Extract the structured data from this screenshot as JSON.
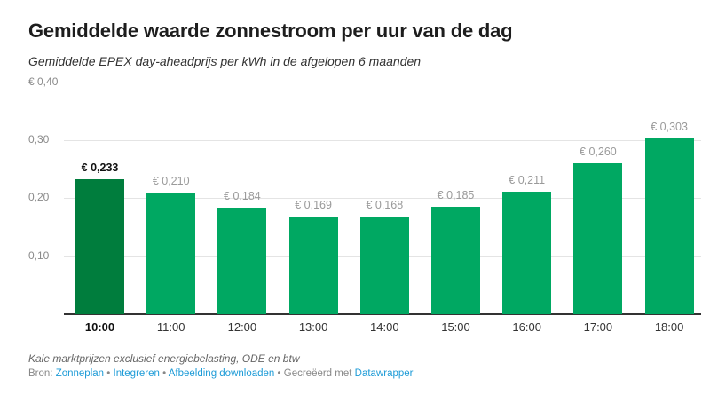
{
  "header": {
    "title": "Gemiddelde waarde zonnestroom per uur van de dag",
    "subtitle": "Gemiddelde EPEX day-aheadprijs per kWh in de afgelopen 6 maanden"
  },
  "chart_data": {
    "type": "bar",
    "title": "Gemiddelde waarde zonnestroom per uur van de dag",
    "subtitle": "Gemiddelde EPEX day-aheadprijs per kWh in de afgelopen 6 maanden",
    "xlabel": "",
    "ylabel": "",
    "categories": [
      "10:00",
      "11:00",
      "12:00",
      "13:00",
      "14:00",
      "15:00",
      "16:00",
      "17:00",
      "18:00"
    ],
    "values": [
      0.233,
      0.21,
      0.184,
      0.169,
      0.168,
      0.185,
      0.211,
      0.26,
      0.303
    ],
    "value_labels": [
      "€ 0,233",
      "€ 0,210",
      "€ 0,184",
      "€ 0,169",
      "€ 0,168",
      "€ 0,185",
      "€ 0,211",
      "€ 0,260",
      "€ 0,303"
    ],
    "highlighted_category": "10:00",
    "ylim": [
      0,
      0.4
    ],
    "yticks": [
      0.1,
      0.2,
      0.3,
      0.4
    ],
    "ytick_labels": [
      "0,10",
      "0,20",
      "0,30",
      "€ 0,40"
    ],
    "grid": true,
    "colors": {
      "bar": "#00a862",
      "highlight": "#007d3d"
    }
  },
  "footer": {
    "note": "Kale marktprijzen exclusief energiebelasting, ODE en btw",
    "source_prefix": "Bron:",
    "source_link": "Zonneplan",
    "sep": "•",
    "embed_link": "Integreren",
    "download_link": "Afbeelding downloaden",
    "created_with": "Gecreëerd met",
    "datawrapper_link": "Datawrapper"
  }
}
